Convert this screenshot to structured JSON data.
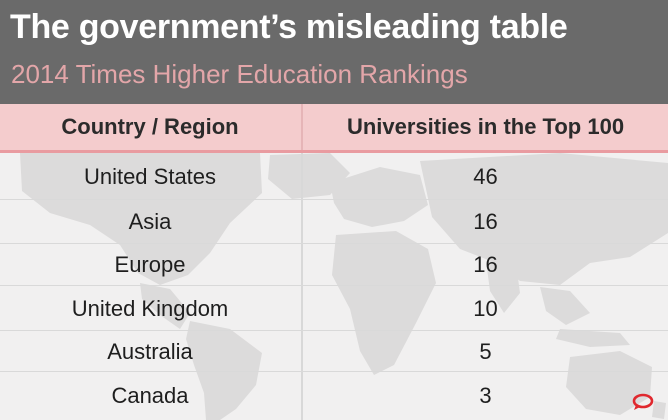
{
  "chart_data": {
    "type": "table",
    "title": "The government’s misleading table",
    "subtitle": "2014 Times Higher Education Rankings",
    "columns": [
      "Country / Region",
      "Universities in the Top 100"
    ],
    "rows": [
      {
        "region": "United States",
        "count": "46"
      },
      {
        "region": "Asia",
        "count": "16"
      },
      {
        "region": "Europe",
        "count": "16"
      },
      {
        "region": "United Kingdom",
        "count": "10"
      },
      {
        "region": "Australia",
        "count": "5"
      },
      {
        "region": "Canada",
        "count": "3"
      }
    ]
  },
  "colors": {
    "header_bg": "#6a6a6a",
    "subtitle": "#e3a6a9",
    "column_header_bg": "#f4cccd",
    "accent": "#e0282e"
  },
  "icons": {
    "brand_logo": "speech-bubble-logo-icon"
  }
}
